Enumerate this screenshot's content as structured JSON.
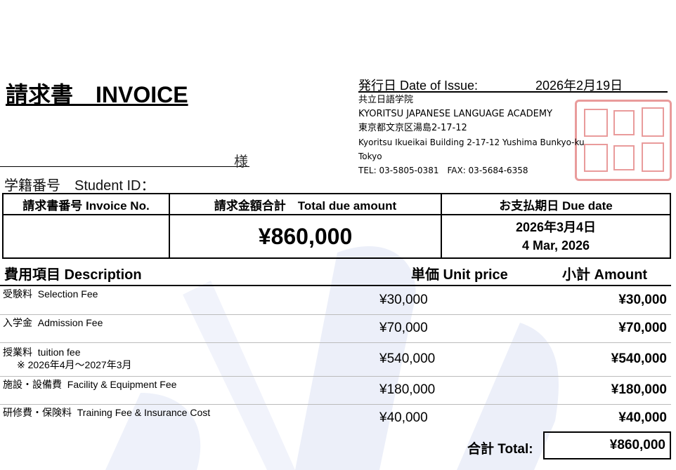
{
  "header": {
    "title": "請求書　INVOICE",
    "issue_label": "発行日 Date of Issue:",
    "issue_date": "2026年2月19日"
  },
  "issuer": {
    "name_ja": "共立日語学院",
    "name_en": "KYORITSU JAPANESE LANGUAGE ACADEMY",
    "address_ja": "東京都文京区湯島2-17-12",
    "address_en": "Kyoritsu Ikueikai Building 2-17-12 Yushima Bunkyo-ku",
    "city": "Tokyo",
    "phone": "TEL: 03-5805-0381　FAX: 03-5684-6358"
  },
  "recipient": {
    "honorific": "様",
    "student_id_label": "学籍番号　Student ID："
  },
  "summary": {
    "invoice_no_label": "請求書番号 Invoice No.",
    "invoice_no": "",
    "total_label": "請求金額合計　Total due amount",
    "total": "¥860,000",
    "due_label": "お支払期日 Due date",
    "due_ja": "2026年3月4日",
    "due_en": "4 Mar, 2026"
  },
  "items_header": {
    "description": "費用項目 Description",
    "unit_price": "単価 Unit price",
    "amount": "小計 Amount"
  },
  "items": [
    {
      "description": "受験料  Selection Fee",
      "note": "",
      "unit_price": "¥30,000",
      "amount": "¥30,000"
    },
    {
      "description": "入学金  Admission Fee",
      "note": "",
      "unit_price": "¥70,000",
      "amount": "¥70,000"
    },
    {
      "description": "授業料  tuition fee",
      "note": "※ 2026年4月～2027年3月",
      "unit_price": "¥540,000",
      "amount": "¥540,000"
    },
    {
      "description": "施設・設備費  Facility & Equipment Fee",
      "note": "",
      "unit_price": "¥180,000",
      "amount": "¥180,000"
    },
    {
      "description": "研修費・保険料  Training Fee & Insurance Cost",
      "note": "",
      "unit_price": "¥40,000",
      "amount": "¥40,000"
    }
  ],
  "total": {
    "label": "合計 Total:",
    "value": "¥860,000"
  },
  "colors": {
    "seal": "#d84a4a",
    "watermark": "#e6eaf7"
  }
}
